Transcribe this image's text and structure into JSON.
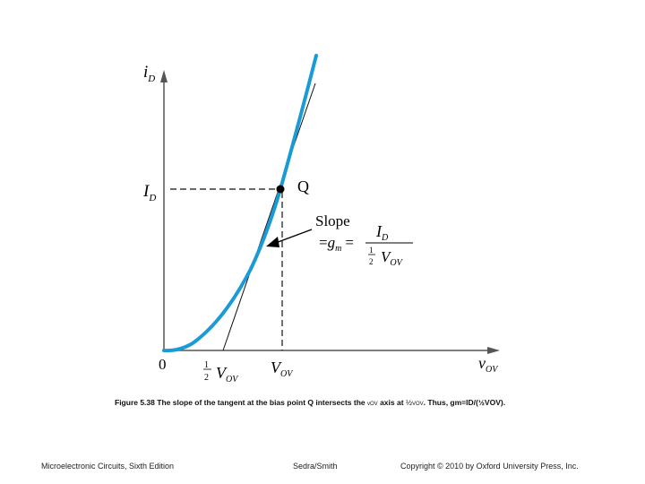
{
  "figure": {
    "y_axis_label": "i",
    "y_axis_sub": "D",
    "x_axis_label": "v",
    "x_axis_sub": "OV",
    "origin_label": "0",
    "id_label": "I",
    "id_sub": "D",
    "vov_label": "V",
    "vov_sub": "OV",
    "half_num": "1",
    "half_den": "2",
    "half_vov_label": "V",
    "half_vov_sub": "OV",
    "q_label": "Q",
    "slope_title": "Slope",
    "slope_eq_sym": "=",
    "slope_gm": "g",
    "slope_gm_sub": "m",
    "slope_equals": "=",
    "frac_num": "I",
    "frac_num_sub": "D",
    "frac_den_half_num": "1",
    "frac_den_half_den": "2",
    "frac_den": "V",
    "frac_den_sub": "OV",
    "curve_color": "#1a9ad6",
    "line_color": "#000000"
  },
  "caption": {
    "label": "Figure 5.38",
    "text": "The slope of the tangent at the bias point Q intersects the",
    "var": "vOV",
    "text2": "axis at",
    "half": "½",
    "vov": "VOV",
    "text3": ". Thus, gm=ID/(½VOV)."
  },
  "footer": {
    "left": "Microelectronic Circuits, Sixth Edition",
    "middle": "Sedra/Smith",
    "right": "Copyright © 2010 by Oxford University Press, Inc."
  }
}
